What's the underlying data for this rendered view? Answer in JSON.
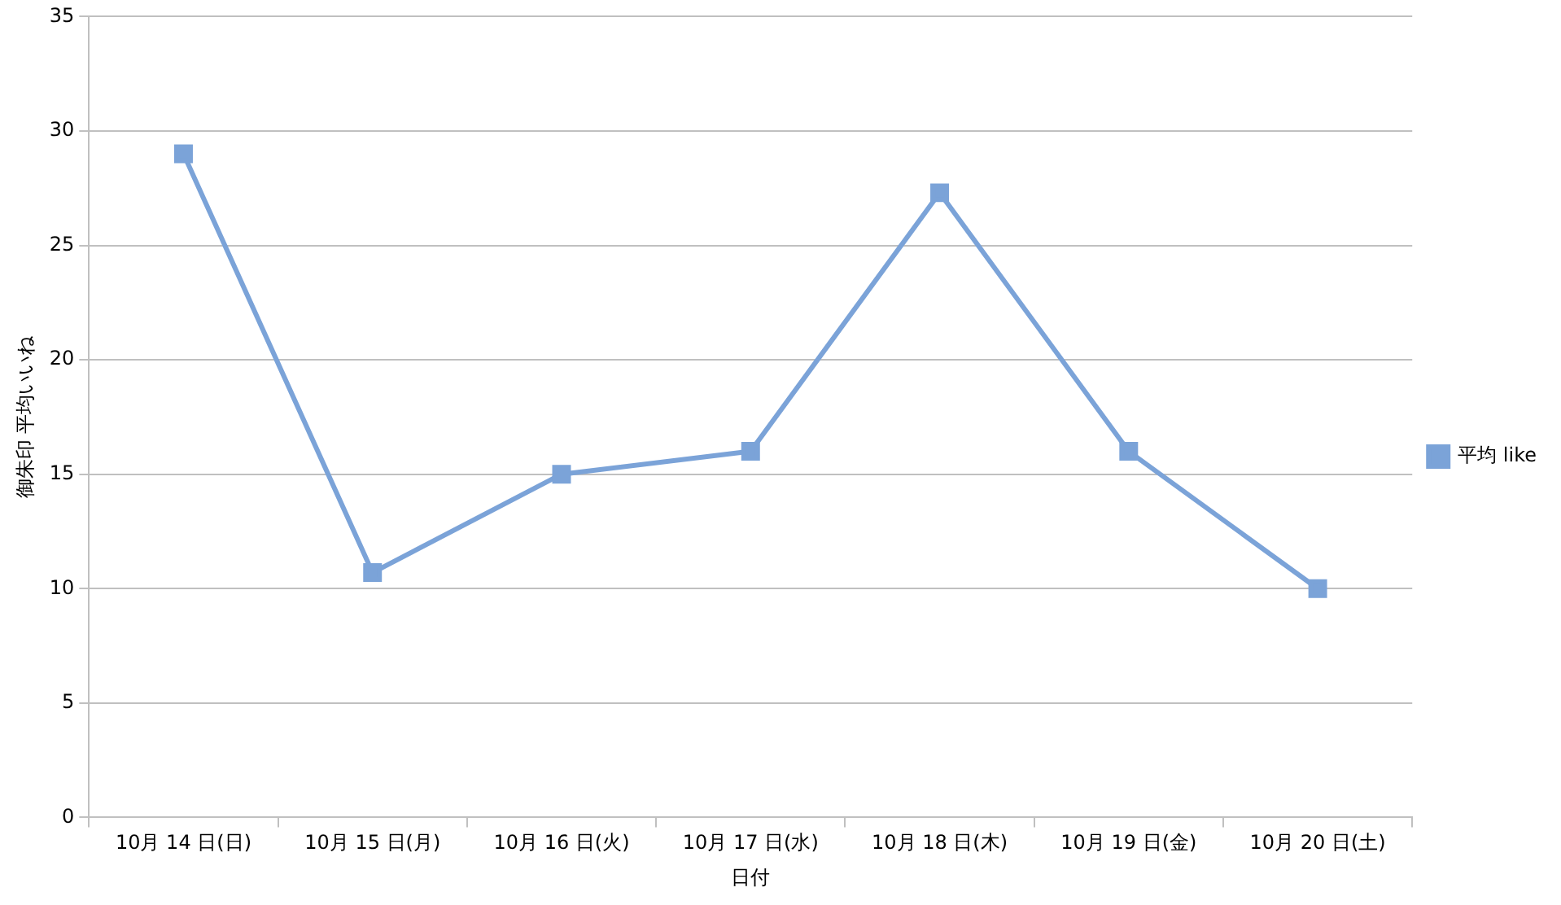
{
  "chart_data": {
    "type": "line",
    "xlabel": "日付",
    "ylabel": "御朱印 平均いいね",
    "categories": [
      "10月 14 日(日)",
      "10月 15 日(月)",
      "10月 16 日(火)",
      "10月 17 日(水)",
      "10月 18 日(木)",
      "10月 19 日(金)",
      "10月 20 日(土)"
    ],
    "series": [
      {
        "name": "平均 like",
        "color": "#7ba3d8",
        "values": [
          29,
          10.7,
          15,
          16,
          27.3,
          16,
          10
        ]
      }
    ],
    "ylim": [
      0,
      35
    ],
    "yticks": [
      0,
      5,
      10,
      15,
      20,
      25,
      30,
      35
    ],
    "grid": "y",
    "legend": "right",
    "marker": "square",
    "line_style": "solid"
  }
}
